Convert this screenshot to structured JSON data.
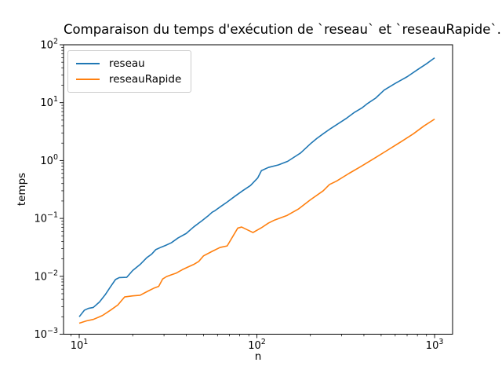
{
  "chart_data": {
    "type": "line",
    "title": "Comparaison du temps d'exécution de `reseau` et `reseauRapide`.",
    "xlabel": "n",
    "ylabel": "temps",
    "xscale": "log",
    "yscale": "log",
    "grid": false,
    "background_color": "#ffffff",
    "axis_color": "#000000",
    "xlim": [
      8.16,
      1262
    ],
    "ylim": [
      0.001,
      100
    ],
    "x_tick_exponents": [
      1,
      2,
      3
    ],
    "y_tick_exponents": [
      2,
      1,
      0,
      -1,
      -2,
      -3
    ],
    "legend_position": "upper left",
    "series": [
      {
        "name": "reseau",
        "color": "#1f77b4",
        "x": [
          10,
          10.7,
          11.3,
          12,
          13,
          14,
          15,
          16,
          16.8,
          18.5,
          20,
          22,
          24,
          25.5,
          27,
          29,
          30.5,
          33,
          36,
          40,
          44,
          49,
          53,
          56,
          58,
          63,
          68,
          75,
          83,
          92,
          101,
          106,
          116,
          132,
          149,
          176,
          202,
          217,
          236,
          261,
          289,
          320,
          354,
          392,
          420,
          466,
          520,
          600,
          700,
          800,
          900,
          1000
        ],
        "y": [
          0.002,
          0.0026,
          0.0028,
          0.0029,
          0.0036,
          0.0048,
          0.0066,
          0.0088,
          0.0095,
          0.0096,
          0.0126,
          0.016,
          0.021,
          0.024,
          0.029,
          0.032,
          0.034,
          0.038,
          0.046,
          0.055,
          0.071,
          0.091,
          0.11,
          0.128,
          0.136,
          0.163,
          0.192,
          0.24,
          0.3,
          0.37,
          0.5,
          0.67,
          0.76,
          0.84,
          0.97,
          1.35,
          2.0,
          2.4,
          2.9,
          3.6,
          4.4,
          5.4,
          6.8,
          8.2,
          9.7,
          12.0,
          16.5,
          21.5,
          28,
          37,
          47,
          59.5
        ]
      },
      {
        "name": "reseauRapide",
        "color": "#ff7f0e",
        "x": [
          10,
          11,
          12,
          13.5,
          15,
          16.5,
          18,
          20,
          22,
          24.5,
          26.5,
          28,
          29.5,
          31,
          33,
          35,
          38,
          41,
          44,
          47,
          50,
          56,
          62,
          68,
          78,
          82,
          95,
          106,
          116,
          126,
          148,
          171,
          200,
          236,
          256,
          280,
          330,
          385,
          460,
          545,
          645,
          760,
          870,
          1000
        ],
        "y": [
          0.00155,
          0.0017,
          0.0018,
          0.0021,
          0.0026,
          0.0032,
          0.0044,
          0.0046,
          0.0047,
          0.0056,
          0.0063,
          0.0067,
          0.009,
          0.0099,
          0.0106,
          0.0113,
          0.013,
          0.0145,
          0.016,
          0.018,
          0.0225,
          0.027,
          0.0315,
          0.0335,
          0.068,
          0.071,
          0.057,
          0.069,
          0.083,
          0.094,
          0.113,
          0.145,
          0.21,
          0.3,
          0.385,
          0.44,
          0.6,
          0.79,
          1.1,
          1.52,
          2.1,
          2.9,
          3.95,
          5.2
        ]
      }
    ]
  }
}
